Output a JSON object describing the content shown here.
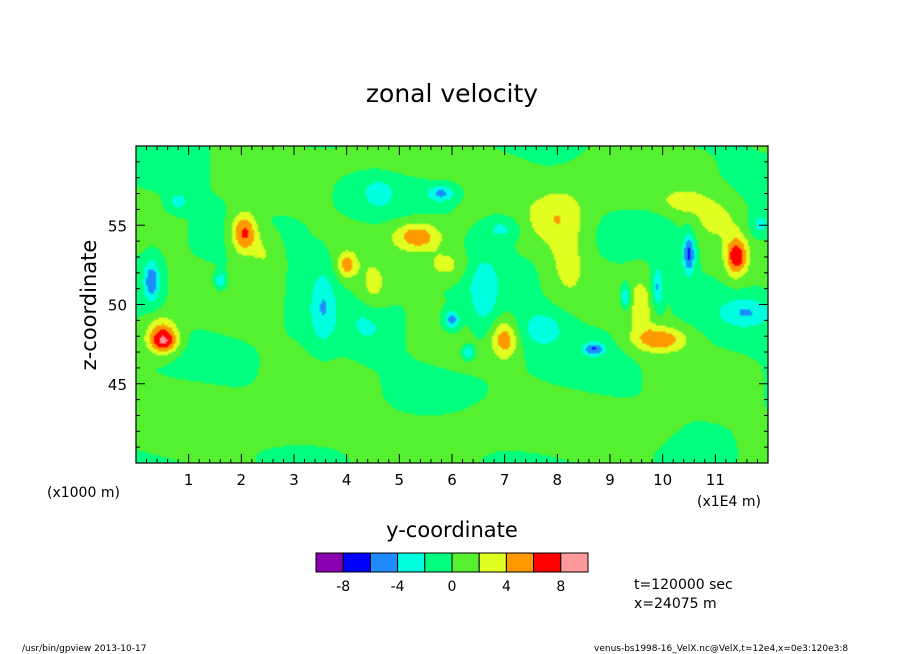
{
  "chart_data": {
    "type": "heatmap",
    "title": "zonal velocity",
    "xlabel": "y-coordinate",
    "ylabel": "z-coordinate",
    "x_unit_left": "(x1000 m)",
    "x_unit_right": "(x1E4 m)",
    "xlim": [
      0,
      12
    ],
    "ylim": [
      40,
      60
    ],
    "x_ticks": [
      1,
      2,
      3,
      4,
      5,
      6,
      7,
      8,
      9,
      10,
      11
    ],
    "y_ticks": [
      45,
      50,
      55
    ],
    "colorbar": {
      "levels": [
        -10,
        -8,
        -6,
        -4,
        -2,
        0,
        2,
        4,
        6,
        8,
        10
      ],
      "tick_values": [
        -8,
        -4,
        0,
        4,
        8
      ],
      "tick_labels": [
        "-8",
        "-4",
        "0",
        "4",
        "8"
      ],
      "colors": [
        "#8b00b0",
        "#0000ff",
        "#1e8cff",
        "#00ffe0",
        "#00ff7f",
        "#55f030",
        "#e0ff20",
        "#ff9900",
        "#ff0000",
        "#ff9a9a"
      ]
    },
    "blobs": [
      {
        "x": 0.5,
        "z": 48.0,
        "v": 6.5,
        "sx": 0.3,
        "sz": 1.1
      },
      {
        "x": 0.55,
        "z": 47.6,
        "v": 3.0,
        "sx": 0.25,
        "sz": 0.6
      },
      {
        "x": 2.05,
        "z": 54.5,
        "v": 7.0,
        "sx": 0.25,
        "sz": 1.3
      },
      {
        "x": 2.45,
        "z": 53.2,
        "v": 2.5,
        "sx": 0.3,
        "sz": 1.5
      },
      {
        "x": 4.0,
        "z": 52.5,
        "v": 4.5,
        "sx": 0.18,
        "sz": 0.8
      },
      {
        "x": 4.5,
        "z": 50.5,
        "v": 3.0,
        "sx": 0.3,
        "sz": 2.0
      },
      {
        "x": 5.35,
        "z": 54.3,
        "v": 5.5,
        "sx": 0.45,
        "sz": 0.9
      },
      {
        "x": 5.9,
        "z": 52.5,
        "v": 3.0,
        "sx": 0.4,
        "sz": 1.0
      },
      {
        "x": 7.0,
        "z": 47.8,
        "v": 5.0,
        "sx": 0.25,
        "sz": 1.2
      },
      {
        "x": 8.0,
        "z": 55.5,
        "v": 3.5,
        "sx": 0.55,
        "sz": 1.8
      },
      {
        "x": 8.2,
        "z": 52.5,
        "v": 2.5,
        "sx": 0.35,
        "sz": 2.0
      },
      {
        "x": 9.95,
        "z": 47.8,
        "v": 5.5,
        "sx": 0.5,
        "sz": 0.8
      },
      {
        "x": 9.6,
        "z": 50.0,
        "v": 2.5,
        "sx": 0.3,
        "sz": 2.0
      },
      {
        "x": 11.4,
        "z": 53.0,
        "v": 7.0,
        "sx": 0.2,
        "sz": 1.2
      },
      {
        "x": 10.4,
        "z": 56.5,
        "v": 3.0,
        "sx": 0.4,
        "sz": 0.7
      },
      {
        "x": 11.0,
        "z": 55.5,
        "v": 2.5,
        "sx": 0.5,
        "sz": 1.5
      },
      {
        "x": 0.3,
        "z": 51.5,
        "v": -5.5,
        "sx": 0.15,
        "sz": 1.3
      },
      {
        "x": 0.8,
        "z": 56.5,
        "v": -3.0,
        "sx": 0.2,
        "sz": 0.6
      },
      {
        "x": 1.6,
        "z": 51.5,
        "v": -4.5,
        "sx": 0.1,
        "sz": 0.5
      },
      {
        "x": 3.55,
        "z": 50.0,
        "v": -3.5,
        "sx": 0.25,
        "sz": 2.5
      },
      {
        "x": 4.45,
        "z": 49.0,
        "v": -3.0,
        "sx": 0.35,
        "sz": 1.6
      },
      {
        "x": 5.8,
        "z": 57.0,
        "v": -4.5,
        "sx": 0.25,
        "sz": 0.5
      },
      {
        "x": 6.0,
        "z": 49.0,
        "v": -5.5,
        "sx": 0.15,
        "sz": 0.6
      },
      {
        "x": 6.3,
        "z": 47.0,
        "v": -4.5,
        "sx": 0.1,
        "sz": 0.4
      },
      {
        "x": 6.6,
        "z": 50.5,
        "v": -3.0,
        "sx": 0.3,
        "sz": 2.5
      },
      {
        "x": 6.95,
        "z": 54.8,
        "v": -3.0,
        "sx": 0.35,
        "sz": 0.8
      },
      {
        "x": 7.7,
        "z": 48.5,
        "v": -3.0,
        "sx": 0.45,
        "sz": 1.2
      },
      {
        "x": 8.7,
        "z": 47.2,
        "v": -5.5,
        "sx": 0.2,
        "sz": 0.4
      },
      {
        "x": 9.3,
        "z": 50.5,
        "v": -5.0,
        "sx": 0.1,
        "sz": 0.8
      },
      {
        "x": 9.9,
        "z": 51.0,
        "v": -5.0,
        "sx": 0.12,
        "sz": 1.3
      },
      {
        "x": 10.5,
        "z": 53.2,
        "v": -6.5,
        "sx": 0.12,
        "sz": 1.3
      },
      {
        "x": 11.6,
        "z": 49.5,
        "v": -3.5,
        "sx": 0.5,
        "sz": 0.9
      },
      {
        "x": 11.85,
        "z": 55.0,
        "v": -3.0,
        "sx": 0.2,
        "sz": 0.8
      },
      {
        "x": 4.6,
        "z": 57.0,
        "v": -2.5,
        "sx": 0.3,
        "sz": 1.0
      },
      {
        "x": 1.0,
        "z": 44.0,
        "v": 1.0,
        "sx": 1.0,
        "sz": 1.5
      },
      {
        "x": 3.0,
        "z": 42.0,
        "v": 1.2,
        "sx": 1.2,
        "sz": 1.5
      },
      {
        "x": 6.5,
        "z": 42.5,
        "v": 1.0,
        "sx": 1.5,
        "sz": 1.5
      },
      {
        "x": 9.5,
        "z": 42.0,
        "v": 1.2,
        "sx": 1.2,
        "sz": 1.5
      },
      {
        "x": 6.0,
        "z": 59.0,
        "v": 1.0,
        "sx": 2.5,
        "sz": 1.0
      },
      {
        "x": 2.5,
        "z": 57.5,
        "v": 1.2,
        "sx": 0.6,
        "sz": 1.0
      },
      {
        "x": 9.0,
        "z": 57.0,
        "v": 1.0,
        "sx": 0.8,
        "sz": 1.2
      }
    ]
  },
  "annotations": {
    "time": "t=120000 sec",
    "position": "x=24075 m",
    "footer_left": "/usr/bin/gpview  2013-10-17",
    "footer_right": "venus-bs1998-16_VelX.nc@VelX,t=12e4,x=0e3:120e3:8"
  }
}
